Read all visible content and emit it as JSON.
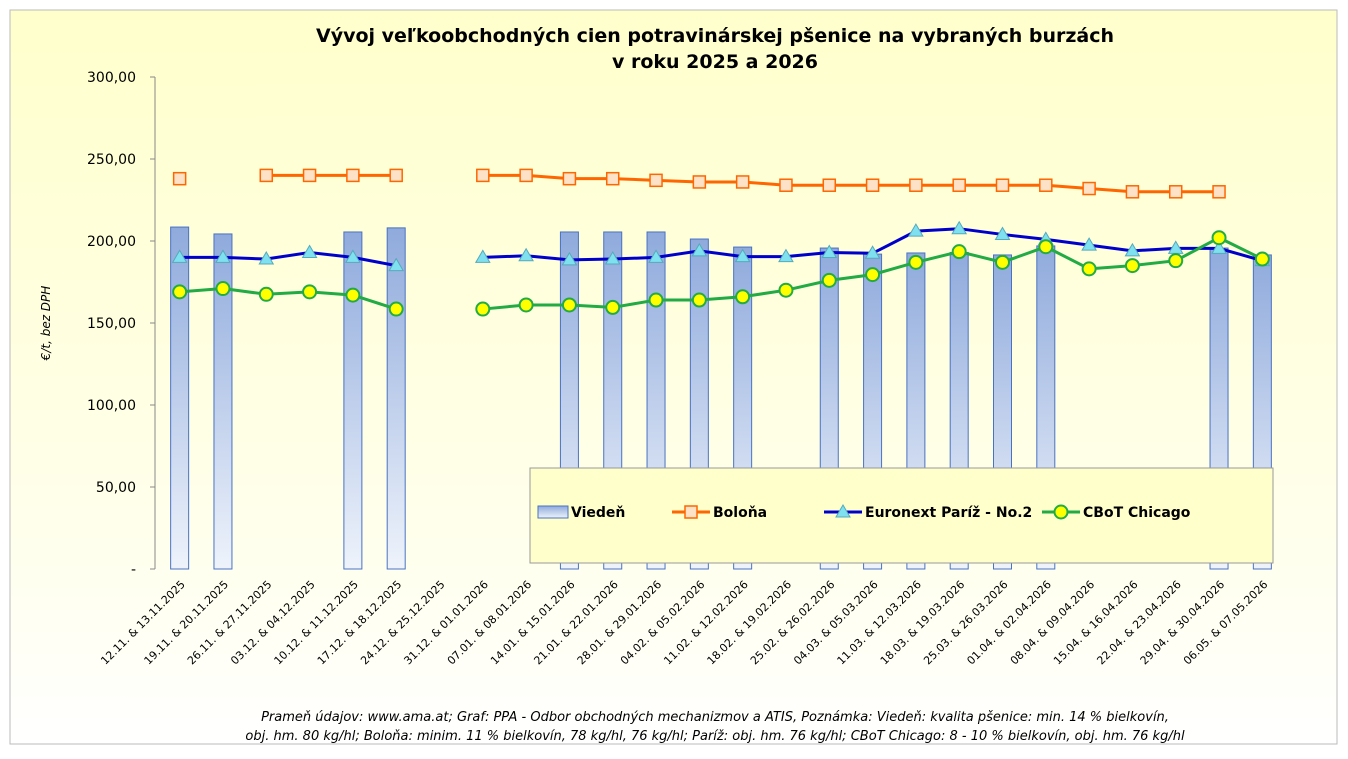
{
  "chart_data": {
    "type": "bar_line",
    "title": [
      "Vývoj veľkoobchodných cien potravinárskej pšenice na vybraných burzách",
      "v roku 2025 a 2026"
    ],
    "y_label": "€/t, bez DPH",
    "footnote": [
      "Prameň údajov: www.ama.at; Graf: PPA - Odbor obchodných mechanizmov a ATIS, Poznámka: Viedeň: kvalita pšenice: min. 14 % bielkovín,",
      "obj. hm. 80 kg/hl; Boloňa: minim. 11 % bielkovín, 78 kg/hl, 76 kg/hl; Paríž: obj. hm. 76 kg/hl; CBoT Chicago: 8 - 10 % bielkovín, obj. hm. 76 kg/hl"
    ],
    "categories": [
      "12.11. & 13.11.2025",
      "19.11. & 20.11.2025",
      "26.11. & 27.11.2025",
      "03.12. & 04.12.2025",
      "10.12. & 11.12.2025",
      "17.12. & 18.12.2025",
      "24.12. & 25.12.2025",
      "31.12. & 01.01.2026",
      "07.01. & 08.01.2026",
      "14.01. & 15.01.2026",
      "21.01. & 22.01.2026",
      "28.01. & 29.01.2026",
      "04.02. & 05.02.2026",
      "11.02. & 12.02.2026",
      "18.02. & 19.02.2026",
      "25.02. & 26.02.2026",
      "04.03. & 05.03.2026",
      "11.03. & 12.03.2026",
      "18.03. & 19.03.2026",
      "25.03. & 26.03.2026",
      "01.04. & 02.04.2026",
      "08.04. & 09.04.2026",
      "15.04. & 16.04.2026",
      "22.04. & 23.04.2026",
      "29.04. & 30.04.2026",
      "06.05. & 07.05.2026"
    ],
    "series": [
      {
        "name": "Viedeň",
        "kind": "bar",
        "color": "#8faadc",
        "values": [
          208.5,
          204.3,
          null,
          null,
          205.5,
          208,
          null,
          null,
          null,
          205.5,
          205.5,
          205.5,
          201.2,
          196.3,
          null,
          195.7,
          192,
          192.7,
          193,
          191.5,
          197,
          null,
          null,
          null,
          195.7,
          191.5
        ]
      },
      {
        "name": "Boloňa",
        "kind": "line",
        "color": "#ff6600",
        "marker": "square",
        "values": [
          238,
          null,
          240,
          240,
          240,
          240,
          null,
          240,
          240,
          238,
          238,
          237,
          236,
          236,
          234,
          234,
          234,
          234,
          234,
          234,
          234,
          232,
          230,
          230,
          230,
          null
        ]
      },
      {
        "name": "Euronext Paríž - No.2",
        "kind": "line",
        "color": "#0000cc",
        "marker": "triangle",
        "values": [
          190,
          190,
          189,
          193,
          190,
          185,
          null,
          190,
          191,
          188.5,
          189,
          190,
          194,
          190.5,
          190.5,
          193,
          192.5,
          206,
          207.5,
          204,
          201,
          197.5,
          194,
          195.5,
          195.5,
          188
        ]
      },
      {
        "name": "CBoT Chicago",
        "kind": "line",
        "color": "#22aa44",
        "marker": "circle",
        "values": [
          169,
          171,
          167.5,
          169,
          167,
          158.5,
          null,
          158.5,
          161,
          161,
          159.5,
          164,
          164,
          166,
          170,
          176,
          179.5,
          187,
          193.5,
          187,
          196.5,
          183,
          185,
          188,
          202,
          189
        ]
      }
    ],
    "ylim": [
      0,
      300
    ],
    "yticks": [
      {
        "value": 0,
        "label": "-"
      },
      {
        "value": 50,
        "label": "50,00"
      },
      {
        "value": 100,
        "label": "100,00"
      },
      {
        "value": 150,
        "label": "150,00"
      },
      {
        "value": 200,
        "label": "200,00"
      },
      {
        "value": 250,
        "label": "250,00"
      },
      {
        "value": 300,
        "label": "300,00"
      }
    ],
    "grid": false
  }
}
